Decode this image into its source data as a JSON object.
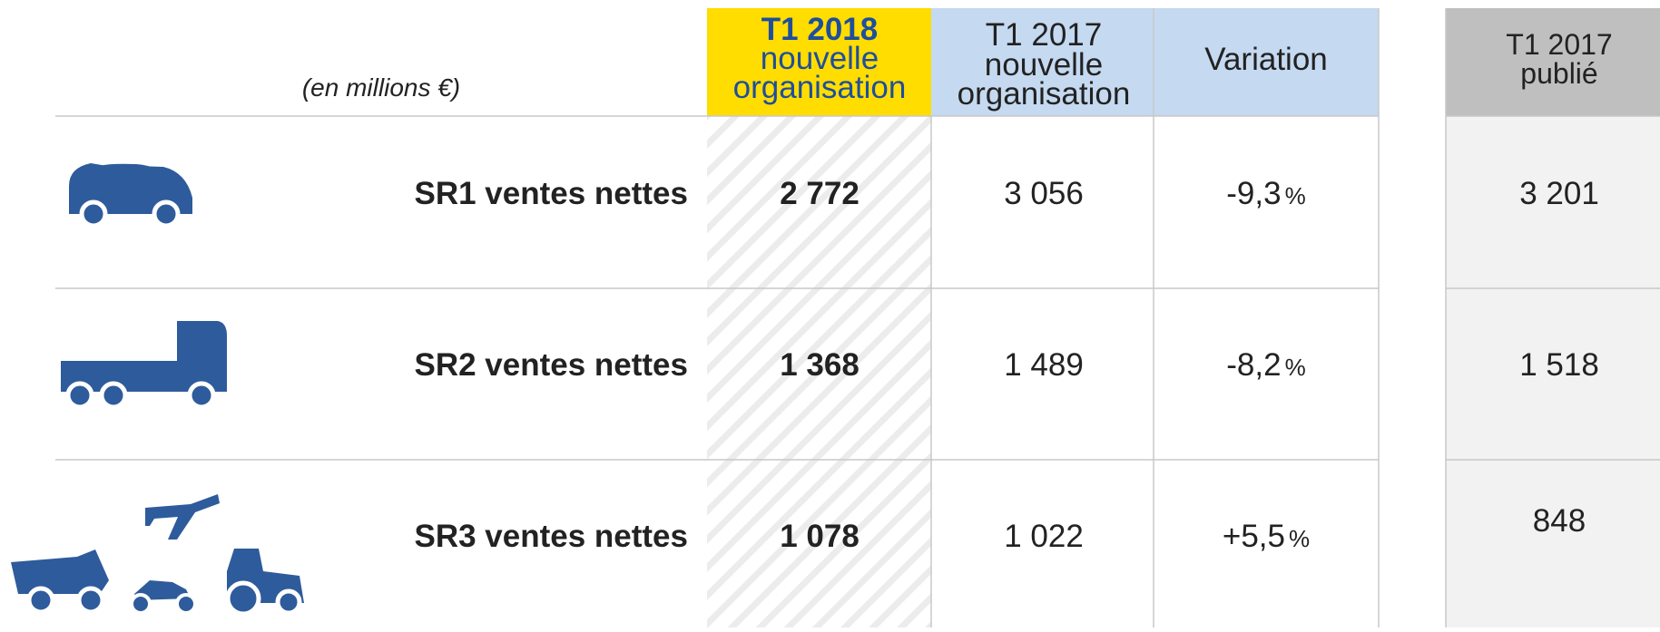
{
  "header": {
    "unit": "(en millions €)",
    "columns": [
      [
        "T1 2018",
        "nouvelle",
        "organisation"
      ],
      [
        "T1 2017",
        "nouvelle",
        "organisation"
      ],
      [
        "Variation"
      ],
      [
        "T1 2017",
        "publié"
      ]
    ]
  },
  "rows": [
    {
      "label": "SR1 ventes nettes",
      "t1_2018": "2 772",
      "t1_2017": "3 056",
      "variation": "-9,3",
      "unit": "%",
      "published": "3 201"
    },
    {
      "label": "SR2 ventes nettes",
      "t1_2018": "1 368",
      "t1_2017": "1 489",
      "variation": "-8,2",
      "unit": "%",
      "published": "1 518"
    },
    {
      "label": "SR3 ventes nettes",
      "t1_2018": "1 078",
      "t1_2017": "1 022",
      "variation": "+5,5",
      "unit": "%",
      "published": "848"
    }
  ]
}
